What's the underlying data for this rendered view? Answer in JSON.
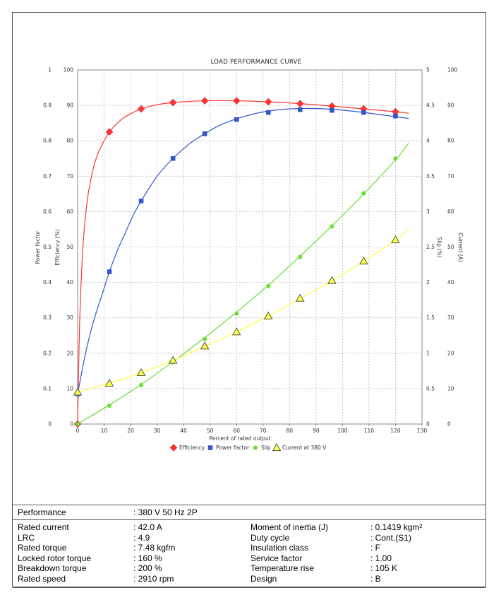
{
  "chart_data": {
    "type": "line",
    "title": "LOAD PERFORMANCE CURVE",
    "xlabel": "Percent of rated output",
    "xlim": [
      0,
      130
    ],
    "x_ticks": [
      "0",
      "10",
      "20",
      "30",
      "40",
      "50",
      "60",
      "70",
      "80",
      "90",
      "100",
      "110",
      "120",
      "130"
    ],
    "axes": {
      "power_factor": {
        "label": "Power factor",
        "ticks": [
          "0",
          "0.1",
          "0.2",
          "0.3",
          "0.4",
          "0.5",
          "0.6",
          "0.7",
          "0.8",
          "0.9",
          "1"
        ],
        "range": [
          0,
          1
        ]
      },
      "efficiency": {
        "label": "Efficiency (%)",
        "ticks": [
          "0",
          "10",
          "20",
          "30",
          "40",
          "50",
          "60",
          "70",
          "80",
          "90",
          "100"
        ],
        "range": [
          0,
          100
        ]
      },
      "slip": {
        "label": "Slip (%)",
        "ticks": [
          "0",
          "0.5",
          "1",
          "1.5",
          "2",
          "2.5",
          "3",
          "3.5",
          "4",
          "4.5",
          "5"
        ],
        "range": [
          0,
          5
        ]
      },
      "current": {
        "label": "Current (A)",
        "ticks": [
          "0",
          "10",
          "20",
          "30",
          "40",
          "50",
          "60",
          "70",
          "80",
          "90",
          "100"
        ],
        "range": [
          0,
          100
        ]
      }
    },
    "grid": true,
    "legend_placement": "bottom",
    "series": [
      {
        "name": "Efficiency",
        "axis": "efficiency",
        "color": "#ff3333",
        "marker": "diamond",
        "points": [
          [
            0,
            0
          ],
          [
            12,
            82.5
          ],
          [
            24,
            89
          ],
          [
            36,
            90.8
          ],
          [
            48,
            91.3
          ],
          [
            60,
            91.3
          ],
          [
            72,
            91
          ],
          [
            84,
            90.5
          ],
          [
            96,
            89.8
          ],
          [
            108,
            89
          ],
          [
            120,
            88.2
          ]
        ],
        "curve": [
          [
            0,
            0
          ],
          [
            0.5,
            20
          ],
          [
            1,
            34
          ],
          [
            2,
            50
          ],
          [
            3,
            59
          ],
          [
            4,
            65
          ],
          [
            5,
            69
          ],
          [
            6,
            72.5
          ],
          [
            7,
            75
          ],
          [
            8,
            77
          ],
          [
            10,
            80
          ],
          [
            12,
            82.5
          ],
          [
            15,
            85
          ],
          [
            18,
            86.8
          ],
          [
            21,
            88
          ],
          [
            24,
            89
          ],
          [
            30,
            90.2
          ],
          [
            36,
            90.8
          ],
          [
            42,
            91.1
          ],
          [
            48,
            91.3
          ],
          [
            54,
            91.35
          ],
          [
            60,
            91.3
          ],
          [
            72,
            91
          ],
          [
            84,
            90.5
          ],
          [
            96,
            89.8
          ],
          [
            108,
            89
          ],
          [
            120,
            88.2
          ],
          [
            125,
            87.8
          ]
        ]
      },
      {
        "name": "Power factor",
        "axis": "power_factor",
        "color": "#3355cc",
        "marker": "square",
        "points": [
          [
            0,
            0.085
          ],
          [
            12,
            0.43
          ],
          [
            24,
            0.63
          ],
          [
            36,
            0.75
          ],
          [
            48,
            0.82
          ],
          [
            60,
            0.86
          ],
          [
            72,
            0.88
          ],
          [
            84,
            0.888
          ],
          [
            96,
            0.886
          ],
          [
            108,
            0.88
          ],
          [
            120,
            0.87
          ]
        ],
        "curve": [
          [
            0,
            0.085
          ],
          [
            3,
            0.2
          ],
          [
            6,
            0.29
          ],
          [
            9,
            0.36
          ],
          [
            12,
            0.43
          ],
          [
            15,
            0.49
          ],
          [
            18,
            0.54
          ],
          [
            21,
            0.59
          ],
          [
            24,
            0.63
          ],
          [
            30,
            0.7
          ],
          [
            36,
            0.75
          ],
          [
            42,
            0.79
          ],
          [
            48,
            0.82
          ],
          [
            54,
            0.845
          ],
          [
            60,
            0.862
          ],
          [
            66,
            0.875
          ],
          [
            72,
            0.884
          ],
          [
            78,
            0.889
          ],
          [
            84,
            0.891
          ],
          [
            90,
            0.891
          ],
          [
            96,
            0.889
          ],
          [
            102,
            0.885
          ],
          [
            108,
            0.88
          ],
          [
            114,
            0.874
          ],
          [
            120,
            0.868
          ],
          [
            125,
            0.863
          ]
        ]
      },
      {
        "name": "Slip",
        "axis": "slip",
        "color": "#66dd33",
        "marker": "circle",
        "points": [
          [
            0,
            0
          ],
          [
            12,
            0.26
          ],
          [
            24,
            0.55
          ],
          [
            36,
            0.87
          ],
          [
            48,
            1.2
          ],
          [
            60,
            1.56
          ],
          [
            72,
            1.95
          ],
          [
            84,
            2.36
          ],
          [
            96,
            2.79
          ],
          [
            108,
            3.26
          ],
          [
            120,
            3.75
          ]
        ],
        "curve": [
          [
            0,
            0
          ],
          [
            12,
            0.27
          ],
          [
            24,
            0.56
          ],
          [
            36,
            0.88
          ],
          [
            48,
            1.22
          ],
          [
            60,
            1.58
          ],
          [
            72,
            1.96
          ],
          [
            84,
            2.37
          ],
          [
            96,
            2.8
          ],
          [
            108,
            3.25
          ],
          [
            120,
            3.73
          ],
          [
            125,
            3.97
          ]
        ]
      },
      {
        "name": "Current at 380 V",
        "axis": "current",
        "color": "#ffff44",
        "marker": "triangle",
        "points": [
          [
            0,
            9
          ],
          [
            12,
            11.5
          ],
          [
            24,
            14.5
          ],
          [
            36,
            18
          ],
          [
            48,
            22
          ],
          [
            60,
            26
          ],
          [
            72,
            30.5
          ],
          [
            84,
            35.5
          ],
          [
            96,
            40.5
          ],
          [
            108,
            46
          ],
          [
            120,
            52
          ]
        ],
        "curve": [
          [
            0,
            9
          ],
          [
            12,
            11.5
          ],
          [
            24,
            14.5
          ],
          [
            36,
            18
          ],
          [
            48,
            22
          ],
          [
            60,
            26
          ],
          [
            72,
            30.5
          ],
          [
            84,
            35.5
          ],
          [
            96,
            40.5
          ],
          [
            108,
            46
          ],
          [
            120,
            52
          ],
          [
            125,
            55
          ]
        ]
      }
    ]
  },
  "specs": {
    "performance_label": "Performance",
    "performance_value": ": 380 V 50 Hz 2P",
    "left": [
      {
        "label": "Rated current",
        "value": ": 42.0 A"
      },
      {
        "label": "LRC",
        "value": ": 4.9"
      },
      {
        "label": "Rated torque",
        "value": ": 7.48 kgfm"
      },
      {
        "label": "Locked rotor torque",
        "value": ": 160 %"
      },
      {
        "label": "Breakdown torque",
        "value": ": 200 %"
      },
      {
        "label": "Rated speed",
        "value": ": 2910 rpm"
      }
    ],
    "right": [
      {
        "label": "Moment of inertia (J)",
        "value": ": 0.1419 kgm²"
      },
      {
        "label": "Duty cycle",
        "value": ": Cont.(S1)"
      },
      {
        "label": "Insulation class",
        "value": ": F"
      },
      {
        "label": "Service factor",
        "value": ": 1.00"
      },
      {
        "label": "Temperature rise",
        "value": ": 105 K"
      },
      {
        "label": "Design",
        "value": ": B"
      }
    ]
  }
}
